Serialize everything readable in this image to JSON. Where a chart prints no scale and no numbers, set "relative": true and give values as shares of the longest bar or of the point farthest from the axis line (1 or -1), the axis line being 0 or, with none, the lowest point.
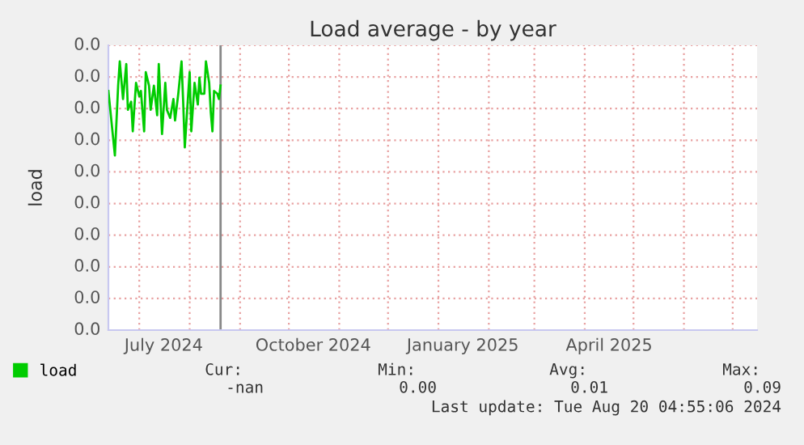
{
  "chart_data": {
    "type": "line",
    "title": "Load average - by year",
    "ylabel": "load",
    "x": [
      "2024-06-12",
      "2024-06-16",
      "2024-06-18",
      "2024-06-19",
      "2024-06-21",
      "2024-06-23",
      "2024-06-24",
      "2024-06-26",
      "2024-06-27",
      "2024-06-29",
      "2024-07-01",
      "2024-07-02",
      "2024-07-04",
      "2024-07-05",
      "2024-07-07",
      "2024-07-08",
      "2024-07-10",
      "2024-07-12",
      "2024-07-13",
      "2024-07-15",
      "2024-07-17",
      "2024-07-18",
      "2024-07-20",
      "2024-07-22",
      "2024-07-23",
      "2024-07-25",
      "2024-07-27",
      "2024-07-28",
      "2024-07-29",
      "2024-07-31",
      "2024-08-01",
      "2024-08-02",
      "2024-08-04",
      "2024-08-06",
      "2024-08-07",
      "2024-08-08",
      "2024-08-10",
      "2024-08-11",
      "2024-08-13",
      "2024-08-14",
      "2024-08-15",
      "2024-08-16",
      "2024-08-18",
      "2024-08-19",
      "2024-08-20"
    ],
    "series": [
      {
        "name": "load",
        "color": "#00cc00",
        "values": [
          0.89,
          0.65,
          0.91,
          1,
          0.86,
          0.99,
          0.82,
          0.85,
          0.74,
          0.92,
          0.87,
          0.89,
          0.74,
          0.96,
          0.91,
          0.82,
          0.91,
          0.8,
          0.99,
          0.73,
          0.92,
          0.82,
          0.79,
          0.86,
          0.78,
          0.88,
          1,
          0.85,
          0.68,
          0.87,
          0.96,
          0.74,
          0.92,
          0.84,
          0.94,
          0.88,
          0.88,
          1,
          0.92,
          0.81,
          0.74,
          0.89,
          0.88,
          0.86,
          0.91
        ]
      }
    ],
    "relative": true,
    "xlim": [
      "2024-06-12",
      "2025-07-16"
    ],
    "xticks": [
      {
        "value": "2024-07-01",
        "label": null
      },
      {
        "value": "2024-07-16",
        "label": "July 2024"
      },
      {
        "value": "2024-08-01",
        "label": null
      },
      {
        "value": "2024-09-01",
        "label": null
      },
      {
        "value": "2024-10-01",
        "label": null
      },
      {
        "value": "2024-10-16",
        "label": "October 2024"
      },
      {
        "value": "2024-11-01",
        "label": null
      },
      {
        "value": "2024-12-01",
        "label": null
      },
      {
        "value": "2025-01-01",
        "label": null
      },
      {
        "value": "2025-01-16",
        "label": "January 2025"
      },
      {
        "value": "2025-02-01",
        "label": null
      },
      {
        "value": "2025-03-01",
        "label": null
      },
      {
        "value": "2025-04-01",
        "label": null
      },
      {
        "value": "2025-04-16",
        "label": "April 2025"
      },
      {
        "value": "2025-05-01",
        "label": null
      },
      {
        "value": "2025-06-01",
        "label": null
      },
      {
        "value": "2025-07-01",
        "label": null
      }
    ],
    "ref_lines": [
      {
        "axis": "x",
        "value": "2024-08-20",
        "color": "#888888"
      }
    ],
    "grid": true,
    "legend": "bottom left",
    "marker": "none",
    "line_style": "solid",
    "annotations": [
      "Cur:",
      "Min:",
      "Avg:",
      "Max:",
      "-nan",
      "0.00",
      "0.01",
      "0.09",
      "Last update: Tue Aug 20 04:55:06 2024",
      "0.0",
      "0.0",
      "0.0",
      "0.0",
      "0.0",
      "0.0",
      "0.0",
      "0.0",
      "0.0",
      "0.0"
    ]
  }
}
